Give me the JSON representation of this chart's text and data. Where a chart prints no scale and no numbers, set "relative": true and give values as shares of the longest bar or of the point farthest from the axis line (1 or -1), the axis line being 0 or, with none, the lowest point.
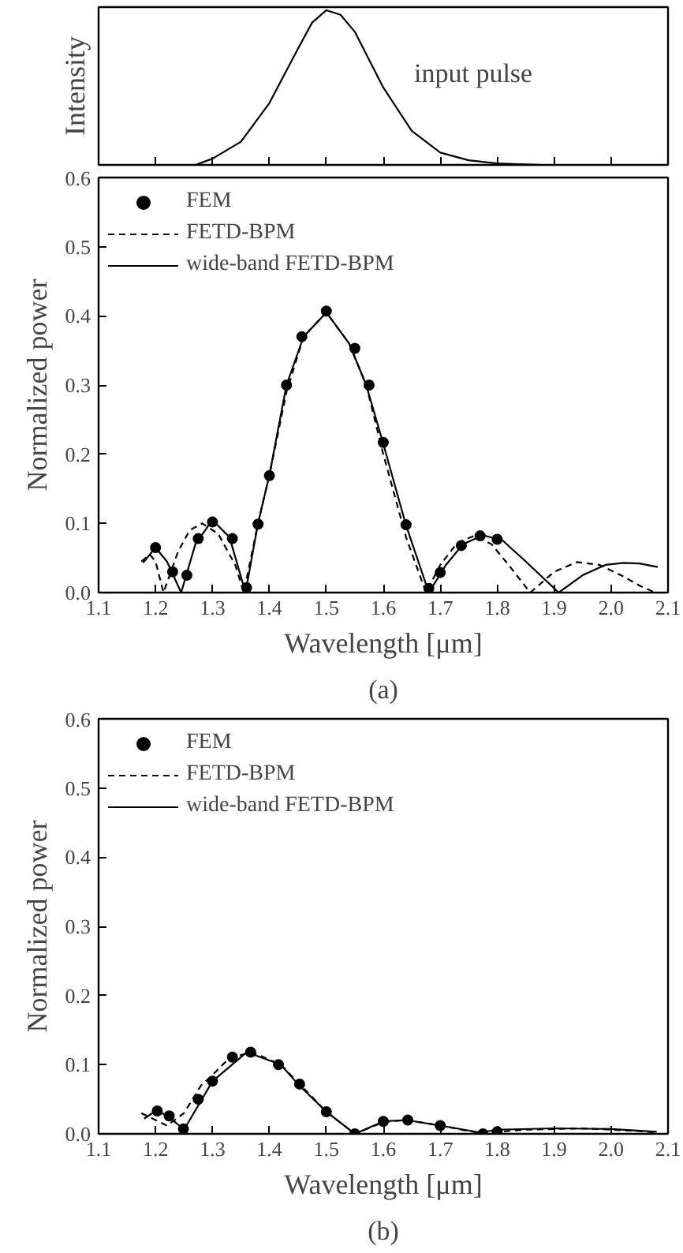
{
  "chart_data": [
    {
      "type": "line",
      "ylabel": "Intensity",
      "relative": true,
      "tick_labels": false,
      "xlim": [
        1.1,
        2.1
      ],
      "xticks": [
        1.1,
        1.2,
        1.3,
        1.4,
        1.5,
        1.6,
        1.7,
        1.8,
        1.9,
        2.0,
        2.1
      ],
      "annotations": [
        "input pulse"
      ],
      "series": [
        {
          "color": "#000000",
          "line_style": "solid",
          "x": [
            1.27,
            1.3,
            1.35,
            1.4,
            1.45,
            1.475,
            1.5,
            1.525,
            1.55,
            1.6,
            1.65,
            1.7,
            1.75,
            1.8,
            1.85,
            1.88
          ],
          "values": [
            0.0,
            0.04,
            0.15,
            0.4,
            0.75,
            0.92,
            1.0,
            0.97,
            0.86,
            0.5,
            0.22,
            0.08,
            0.03,
            0.01,
            0.003,
            0.0
          ]
        }
      ]
    },
    {
      "type": "line",
      "xlabel": "Wavelength [μm]",
      "ylabel": "Normalized power",
      "xlim": [
        1.1,
        2.1
      ],
      "ylim": [
        0.0,
        0.6
      ],
      "xticks": [
        {
          "value": 1.1,
          "label": "1.1"
        },
        {
          "value": 1.2,
          "label": "1.2"
        },
        {
          "value": 1.3,
          "label": "1.3"
        },
        {
          "value": 1.4,
          "label": "1.4"
        },
        {
          "value": 1.5,
          "label": "1.5"
        },
        {
          "value": 1.6,
          "label": "1.6"
        },
        {
          "value": 1.7,
          "label": "1.7"
        },
        {
          "value": 1.8,
          "label": "1.8"
        },
        {
          "value": 1.9,
          "label": "1.9"
        },
        {
          "value": 2.0,
          "label": "2.0"
        },
        {
          "value": 2.1,
          "label": "2.1"
        }
      ],
      "yticks": [
        {
          "value": 0.0,
          "label": "0.0"
        },
        {
          "value": 0.1,
          "label": "0.1"
        },
        {
          "value": 0.2,
          "label": "0.2"
        },
        {
          "value": 0.3,
          "label": "0.3"
        },
        {
          "value": 0.4,
          "label": "0.4"
        },
        {
          "value": 0.5,
          "label": "0.5"
        },
        {
          "value": 0.6,
          "label": "0.6"
        }
      ],
      "legend": "top left",
      "annotations": [
        "(a)"
      ],
      "series": [
        {
          "name": "FEM",
          "type": "scatter",
          "marker": "circle",
          "color": "#000000",
          "x": [
            1.2,
            1.23,
            1.255,
            1.275,
            1.3,
            1.335,
            1.36,
            1.38,
            1.4,
            1.43,
            1.457,
            1.5,
            1.55,
            1.575,
            1.6,
            1.64,
            1.68,
            1.7,
            1.737,
            1.77,
            1.8
          ],
          "values": [
            0.065,
            0.03,
            0.025,
            0.078,
            0.102,
            0.078,
            0.007,
            0.099,
            0.169,
            0.3,
            0.37,
            0.407,
            0.353,
            0.3,
            0.217,
            0.098,
            0.006,
            0.029,
            0.068,
            0.082,
            0.077
          ]
        },
        {
          "name": "FETD-BPM",
          "color": "#000000",
          "line_style": "dashed",
          "x": [
            1.175,
            1.19,
            1.2,
            1.214,
            1.24,
            1.26,
            1.282,
            1.31,
            1.34,
            1.355,
            1.38,
            1.4,
            1.43,
            1.46,
            1.5,
            1.54,
            1.57,
            1.6,
            1.64,
            1.675,
            1.7,
            1.73,
            1.76,
            1.79,
            1.82,
            1.858,
            1.9,
            1.94,
            1.98,
            2.02,
            2.05,
            2.077
          ],
          "values": [
            0.045,
            0.055,
            0.045,
            0.0,
            0.06,
            0.09,
            0.1,
            0.085,
            0.04,
            0.0,
            0.1,
            0.17,
            0.29,
            0.37,
            0.405,
            0.36,
            0.3,
            0.2,
            0.08,
            0.0,
            0.04,
            0.072,
            0.082,
            0.07,
            0.04,
            0.0,
            0.03,
            0.044,
            0.04,
            0.024,
            0.01,
            0.0
          ]
        },
        {
          "name": "wide-band FETD-BPM",
          "color": "#000000",
          "line_style": "solid",
          "x": [
            1.178,
            1.2,
            1.22,
            1.245,
            1.27,
            1.3,
            1.33,
            1.358,
            1.38,
            1.4,
            1.43,
            1.46,
            1.5,
            1.54,
            1.57,
            1.6,
            1.64,
            1.68,
            1.71,
            1.74,
            1.775,
            1.81,
            1.85,
            1.908,
            1.95,
            1.99,
            2.022,
            2.05,
            2.082
          ],
          "values": [
            0.043,
            0.065,
            0.045,
            0.0,
            0.07,
            0.105,
            0.08,
            0.0,
            0.1,
            0.17,
            0.3,
            0.37,
            0.405,
            0.36,
            0.3,
            0.215,
            0.097,
            0.0,
            0.04,
            0.07,
            0.083,
            0.075,
            0.045,
            0.0,
            0.025,
            0.04,
            0.043,
            0.042,
            0.037
          ]
        }
      ]
    },
    {
      "type": "line",
      "xlabel": "Wavelength [μm]",
      "ylabel": "Normalized power",
      "xlim": [
        1.1,
        2.1
      ],
      "ylim": [
        0.0,
        0.6
      ],
      "xticks": [
        {
          "value": 1.1,
          "label": "1.1"
        },
        {
          "value": 1.2,
          "label": "1.2"
        },
        {
          "value": 1.3,
          "label": "1.3"
        },
        {
          "value": 1.4,
          "label": "1.4"
        },
        {
          "value": 1.5,
          "label": "1.5"
        },
        {
          "value": 1.6,
          "label": "1.6"
        },
        {
          "value": 1.7,
          "label": "1.7"
        },
        {
          "value": 1.8,
          "label": "1.8"
        },
        {
          "value": 1.9,
          "label": "1.9"
        },
        {
          "value": 2.0,
          "label": "2.0"
        },
        {
          "value": 2.1,
          "label": "2.1"
        }
      ],
      "yticks": [
        {
          "value": 0.0,
          "label": "0.0"
        },
        {
          "value": 0.1,
          "label": "0.1"
        },
        {
          "value": 0.2,
          "label": "0.2"
        },
        {
          "value": 0.3,
          "label": "0.3"
        },
        {
          "value": 0.4,
          "label": "0.4"
        },
        {
          "value": 0.5,
          "label": "0.5"
        },
        {
          "value": 0.6,
          "label": "0.6"
        }
      ],
      "legend": "top left",
      "annotations": [
        "(b)"
      ],
      "series": [
        {
          "name": "FEM",
          "type": "scatter",
          "marker": "circle",
          "color": "#000000",
          "x": [
            1.203,
            1.224,
            1.249,
            1.275,
            1.3,
            1.335,
            1.367,
            1.416,
            1.453,
            1.5,
            1.55,
            1.6,
            1.643,
            1.7,
            1.775,
            1.8
          ],
          "values": [
            0.033,
            0.026,
            0.007,
            0.05,
            0.076,
            0.111,
            0.118,
            0.1,
            0.072,
            0.032,
            0.0,
            0.018,
            0.02,
            0.012,
            0.0,
            0.003
          ]
        },
        {
          "name": "FETD-BPM",
          "color": "#000000",
          "line_style": "dashed",
          "x": [
            1.175,
            1.2,
            1.22,
            1.25,
            1.28,
            1.3,
            1.33,
            1.37,
            1.42,
            1.5,
            1.55,
            1.6,
            1.64,
            1.7,
            1.77,
            1.85,
            1.95,
            2.05,
            2.08
          ],
          "values": [
            0.03,
            0.02,
            0.012,
            0.03,
            0.07,
            0.085,
            0.11,
            0.118,
            0.1,
            0.032,
            0.0,
            0.017,
            0.02,
            0.012,
            0.001,
            0.006,
            0.008,
            0.004,
            0.002
          ]
        },
        {
          "name": "wide-band FETD-BPM",
          "color": "#000000",
          "line_style": "solid",
          "x": [
            1.18,
            1.2,
            1.22,
            1.25,
            1.3,
            1.36,
            1.42,
            1.45,
            1.5,
            1.55,
            1.6,
            1.64,
            1.7,
            1.77,
            1.8,
            1.9,
            2.0,
            2.08
          ],
          "values": [
            0.022,
            0.033,
            0.027,
            0.006,
            0.076,
            0.118,
            0.1,
            0.072,
            0.032,
            0.0,
            0.018,
            0.02,
            0.012,
            0.002,
            0.006,
            0.008,
            0.007,
            0.003
          ]
        }
      ]
    }
  ]
}
